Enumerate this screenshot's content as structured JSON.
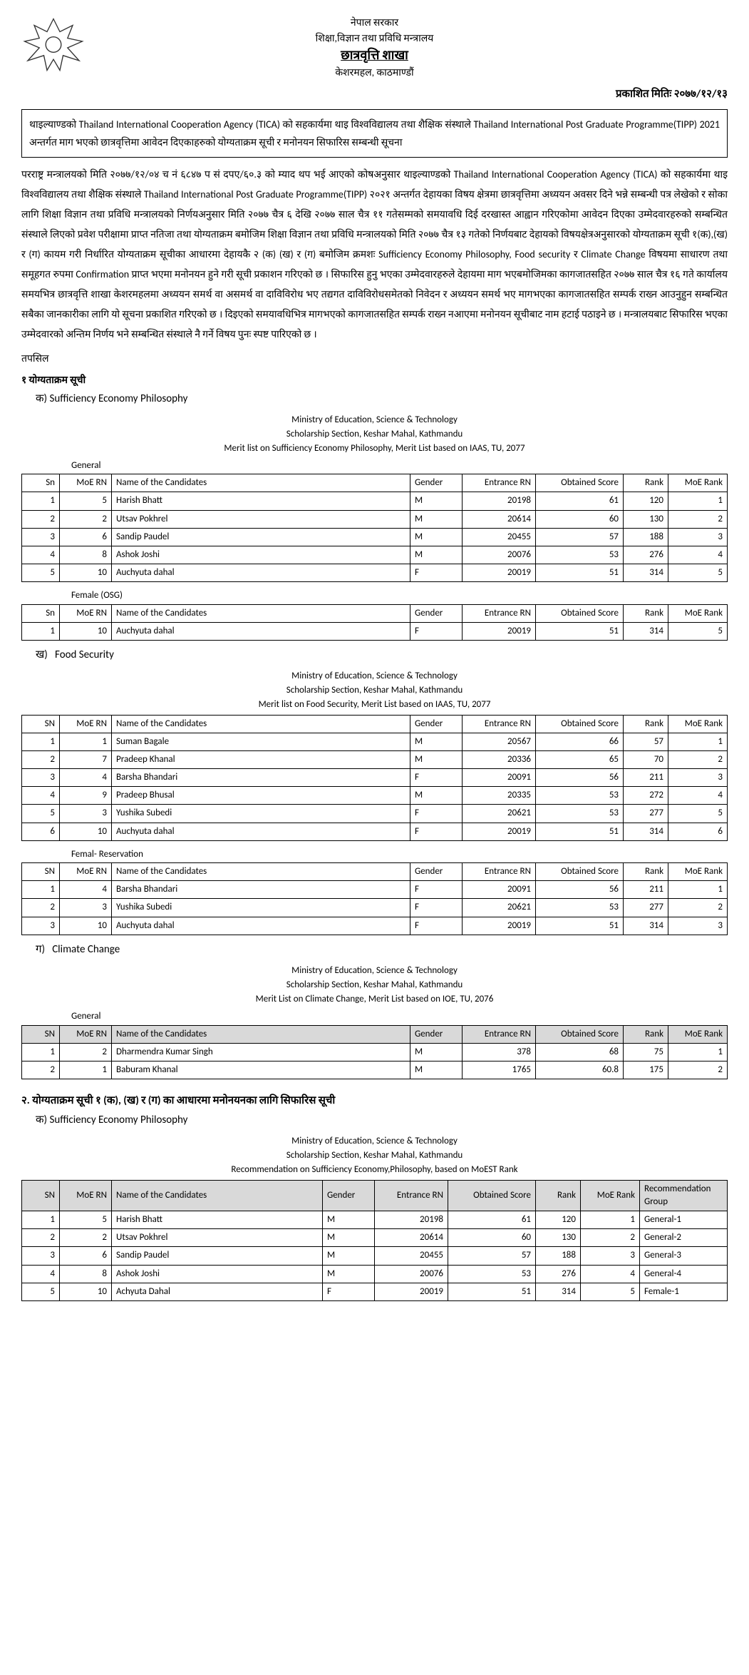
{
  "header": {
    "gov": "नेपाल सरकार",
    "ministry": "शिक्षा,विज्ञान तथा प्रविधि मन्त्रालय",
    "section": "छात्रवृत्ति शाखा",
    "place": "केशरमहल, काठमाण्डौं",
    "pub_date": "प्रकाशित मितिः २०७७/१२/१३"
  },
  "notice_box": "थाइल्याण्डको Thailand International Cooperation Agency (TICA) को सहकार्यमा थाइ विश्वविद्यालय तथा शैक्षिक संस्थाले Thailand International Post Graduate Programme(TIPP) 2021 अन्तर्गत माग भएको छात्रवृत्तिमा आवेदन दिएकाहरुको योग्यताक्रम सूची र मनोनयन सिफारिस सम्बन्धी सूचना",
  "body": "परराष्ट्र मन्त्रालयको मिति २०७७/१२/०४ च नं ६८४७ प सं दपए/६०.३ को म्याद थप भई आएको कोषअनुसार थाइल्याण्डको Thailand International Cooperation Agency (TICA) को सहकार्यमा थाइ विश्वविद्यालय तथा शैक्षिक संस्थाले Thailand International Post Graduate Programme(TIPP) २०२१ अन्तर्गत देहायका विषय क्षेत्रमा छात्रवृत्तिमा अध्ययन अवसर दिने भन्ने सम्बन्धी पत्र लेखेको र सोका लागि शिक्षा विज्ञान तथा प्रविधि मन्त्रालयको निर्णयअनुसार मिति २०७७ चैत्र ६ देखि २०७७ साल चैत्र ११ गतेसम्मको समयावधि दिई दरखास्त आह्वान गरिएकोमा आवेदन दिएका उम्मेदवारहरुको सम्बन्धित संस्थाले लिएको प्रवेश परीक्षामा प्राप्त नतिजा तथा योग्यताक्रम बमोजिम शिक्षा विज्ञान तथा प्रविधि मन्त्रालयको मिति २०७७ चैत्र १३ गतेको निर्णयबाट देहायको विषयक्षेत्रअनुसारको योग्यताक्रम सूची १(क),(ख) र (ग) कायम गरी निर्धारित योग्यताक्रम सूचीका आधारमा देहायकै २ (क) (ख) र (ग) बमोजिम क्रमशः Sufficiency Economy Philosophy, Food security र Climate Change विषयमा साधारण तथा समूहगत रुपमा Confirmation प्राप्त भएमा मनोनयन हुने गरी सूची प्रकाशन गरिएको छ । सिफारिस हुनु भएका उम्मेदवारहरुले देहायमा माग भएबमोजिमका कागजातसहित २०७७ साल चैत्र १६ गते कार्यालय समयभित्र छात्रवृत्ति शाखा केशरमहलमा अध्ययन समर्थ वा असमर्थ वा दाविविरोध भए तद्यगत दाविविरोधसमेतको निवेदन र अध्ययन समर्थ भए मागभएका कागजातसहित सम्पर्क राख्न आउनुहुन सम्बन्धित सबैका जानकारीका लागि यो सूचना प्रकाशित गरिएको छ । दिइएको समयावधिभित्र मागभएको कागजातसहित सम्पर्क राख्न नआएमा मनोनयन सूचीबाट नाम हटाई पठाइने छ । मन्त्रालयबाट सिफारिस भएका उम्मेदवारको अन्तिम निर्णय भने सम्बन्धित संस्थाले नै गर्ने विषय पुनः स्पष्ट पारिएको छ ।",
  "tapasil": "तपसिल",
  "sec1_title": "१ योग्यताक्रम सूची",
  "labels": {
    "ka": "क)",
    "kha": "ख)",
    "ga": "ग)",
    "sep": "Sufficiency Economy Philosophy",
    "fs": "Food Security",
    "cc": "Climate Change"
  },
  "titles": {
    "ministry": "Ministry of Education, Science & Technology",
    "section": "Scholarship Section, Keshar Mahal, Kathmandu",
    "sep_merit": "Merit list  on Sufficiency Economy Philosophy, Merit List based on  IAAS,  TU, 2077",
    "fs_merit": "Merit list  on Food Security, Merit List based on  IAAS,  TU, 2077",
    "cc_merit": "Merit List on Climate Change, Merit List based on  IOE,  TU, 2076",
    "sep_rec": "Recommendation on Sufficiency Economy,Philosophy, based on  MoEST Rank"
  },
  "cat": {
    "general": "General",
    "female_osg": "Female (OSG)",
    "femal_res": "Femal- Reservation"
  },
  "cols": {
    "sn": "Sn",
    "sn2": "SN",
    "moern": "MoE RN",
    "name": "Name of the Candidates",
    "gender": "Gender",
    "ern": "Entrance RN",
    "score": "Obtained Score",
    "rank": "Rank",
    "mrank": "MoE Rank",
    "rec": "Recommendation Group"
  },
  "sep_general": [
    {
      "sn": "1",
      "moern": "5",
      "name": "Harish Bhatt",
      "g": "M",
      "ern": "20198",
      "score": "61",
      "rank": "120",
      "mrank": "1"
    },
    {
      "sn": "2",
      "moern": "2",
      "name": "Utsav Pokhrel",
      "g": "M",
      "ern": "20614",
      "score": "60",
      "rank": "130",
      "mrank": "2"
    },
    {
      "sn": "3",
      "moern": "6",
      "name": "Sandip Paudel",
      "g": "M",
      "ern": "20455",
      "score": "57",
      "rank": "188",
      "mrank": "3"
    },
    {
      "sn": "4",
      "moern": "8",
      "name": "Ashok Joshi",
      "g": "M",
      "ern": "20076",
      "score": "53",
      "rank": "276",
      "mrank": "4"
    },
    {
      "sn": "5",
      "moern": "10",
      "name": "Auchyuta dahal",
      "g": "F",
      "ern": "20019",
      "score": "51",
      "rank": "314",
      "mrank": "5"
    }
  ],
  "sep_female": [
    {
      "sn": "1",
      "moern": "10",
      "name": "Auchyuta dahal",
      "g": "F",
      "ern": "20019",
      "score": "51",
      "rank": "314",
      "mrank": "5"
    }
  ],
  "fs_general": [
    {
      "sn": "1",
      "moern": "1",
      "name": "Suman Bagale",
      "g": "M",
      "ern": "20567",
      "score": "66",
      "rank": "57",
      "mrank": "1"
    },
    {
      "sn": "2",
      "moern": "7",
      "name": "Pradeep Khanal",
      "g": "M",
      "ern": "20336",
      "score": "65",
      "rank": "70",
      "mrank": "2"
    },
    {
      "sn": "3",
      "moern": "4",
      "name": "Barsha Bhandari",
      "g": "F",
      "ern": "20091",
      "score": "56",
      "rank": "211",
      "mrank": "3"
    },
    {
      "sn": "4",
      "moern": "9",
      "name": "Pradeep Bhusal",
      "g": "M",
      "ern": "20335",
      "score": "53",
      "rank": "272",
      "mrank": "4"
    },
    {
      "sn": "5",
      "moern": "3",
      "name": "Yushika Subedi",
      "g": "F",
      "ern": "20621",
      "score": "53",
      "rank": "277",
      "mrank": "5"
    },
    {
      "sn": "6",
      "moern": "10",
      "name": "Auchyuta dahal",
      "g": "F",
      "ern": "20019",
      "score": "51",
      "rank": "314",
      "mrank": "6"
    }
  ],
  "fs_female": [
    {
      "sn": "1",
      "moern": "4",
      "name": "Barsha Bhandari",
      "g": "F",
      "ern": "20091",
      "score": "56",
      "rank": "211",
      "mrank": "1"
    },
    {
      "sn": "2",
      "moern": "3",
      "name": "Yushika Subedi",
      "g": "F",
      "ern": "20621",
      "score": "53",
      "rank": "277",
      "mrank": "2"
    },
    {
      "sn": "3",
      "moern": "10",
      "name": "Auchyuta dahal",
      "g": "F",
      "ern": "20019",
      "score": "51",
      "rank": "314",
      "mrank": "3"
    }
  ],
  "cc_general": [
    {
      "sn": "1",
      "moern": "2",
      "name": "Dharmendra Kumar Singh",
      "g": "M",
      "ern": "378",
      "score": "68",
      "rank": "75",
      "mrank": "1"
    },
    {
      "sn": "2",
      "moern": "1",
      "name": "Baburam Khanal",
      "g": "M",
      "ern": "1765",
      "score": "60.8",
      "rank": "175",
      "mrank": "2"
    }
  ],
  "sec2_title": "२. योग्यताक्रम सूची १ (क), (ख) र (ग) का आधारमा मनोनयनका लागि सिफारिस सूची",
  "rec_sep": [
    {
      "sn": "1",
      "moern": "5",
      "name": "Harish Bhatt",
      "g": "M",
      "ern": "20198",
      "score": "61",
      "rank": "120",
      "mrank": "1",
      "rec": "General-1"
    },
    {
      "sn": "2",
      "moern": "2",
      "name": "Utsav Pokhrel",
      "g": "M",
      "ern": "20614",
      "score": "60",
      "rank": "130",
      "mrank": "2",
      "rec": "General-2"
    },
    {
      "sn": "3",
      "moern": "6",
      "name": "Sandip Paudel",
      "g": "M",
      "ern": "20455",
      "score": "57",
      "rank": "188",
      "mrank": "3",
      "rec": "General-3"
    },
    {
      "sn": "4",
      "moern": "8",
      "name": "Ashok Joshi",
      "g": "M",
      "ern": "20076",
      "score": "53",
      "rank": "276",
      "mrank": "4",
      "rec": "General-4"
    },
    {
      "sn": "5",
      "moern": "10",
      "name": "Achyuta Dahal",
      "g": "F",
      "ern": "20019",
      "score": "51",
      "rank": "314",
      "mrank": "5",
      "rec": "Female-1"
    }
  ]
}
